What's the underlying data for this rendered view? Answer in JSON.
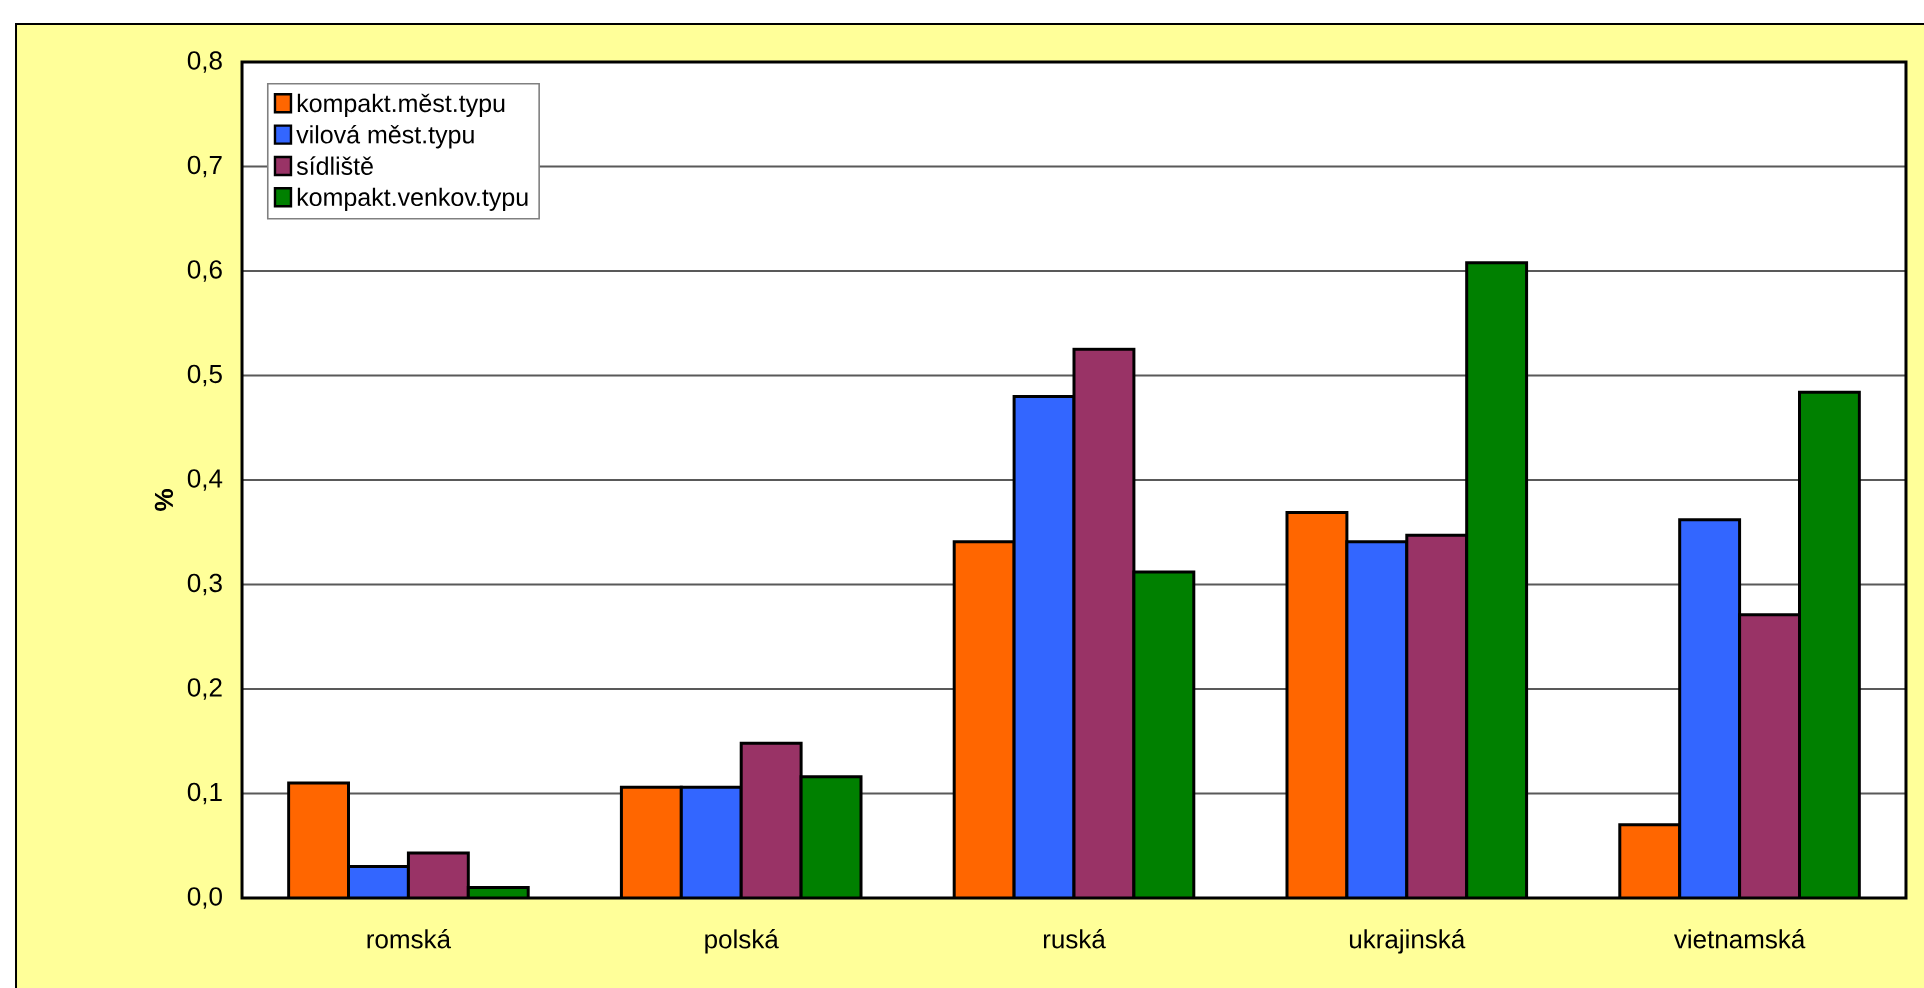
{
  "chart_data": {
    "type": "bar",
    "ylabel": "%",
    "categories": [
      "romská",
      "polská",
      "ruská",
      "ukrajinská",
      "vietnamská"
    ],
    "series": [
      {
        "name": "kompakt.měst.typu",
        "color": "#ff6600",
        "values": [
          0.11,
          0.106,
          0.341,
          0.369,
          0.07
        ]
      },
      {
        "name": "vilová měst.typu",
        "color": "#3366ff",
        "values": [
          0.03,
          0.106,
          0.48,
          0.341,
          0.362
        ]
      },
      {
        "name": "sídliště",
        "color": "#993366",
        "values": [
          0.043,
          0.148,
          0.525,
          0.347,
          0.271
        ]
      },
      {
        "name": "kompakt.venkov.typu",
        "color": "#008000",
        "values": [
          0.01,
          0.116,
          0.312,
          0.608,
          0.484
        ]
      }
    ],
    "ylim": [
      0,
      0.8
    ],
    "yticks": [
      {
        "value": 0,
        "label": "0,0"
      },
      {
        "value": 0.1,
        "label": "0,1"
      },
      {
        "value": 0.2,
        "label": "0,2"
      },
      {
        "value": 0.3,
        "label": "0,3"
      },
      {
        "value": 0.4,
        "label": "0,4"
      },
      {
        "value": 0.5,
        "label": "0,5"
      },
      {
        "value": 0.6,
        "label": "0,6"
      },
      {
        "value": 0.7,
        "label": "0,7"
      },
      {
        "value": 0.8,
        "label": "0,8"
      }
    ],
    "grid": "y",
    "legend": "top left"
  }
}
